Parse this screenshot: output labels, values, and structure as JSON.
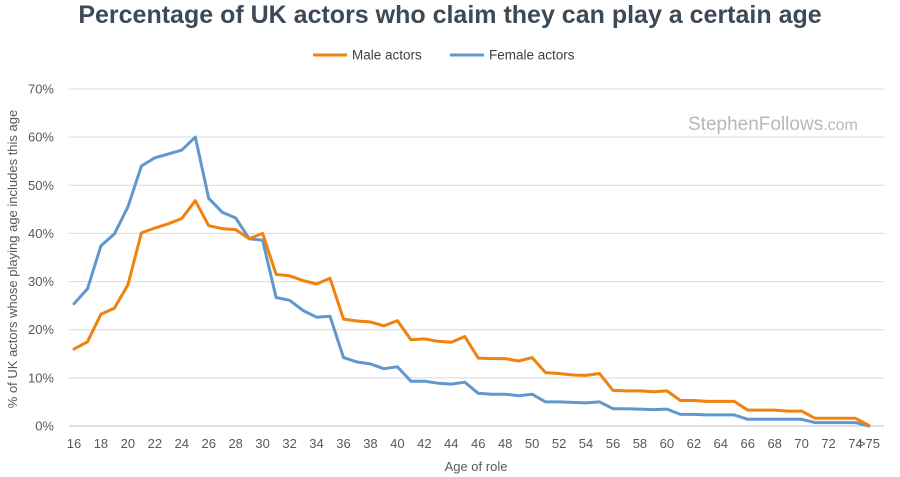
{
  "colors": {
    "male": "#f0820e",
    "female": "#6098ce",
    "grid": "#d9d9d9",
    "title": "#3d4a56"
  },
  "watermark": {
    "main": "StephenFollows",
    "suffix": ".com"
  },
  "chart_data": {
    "type": "line",
    "title": "Percentage of UK actors who claim they can play a certain age",
    "xlabel": "Age of role",
    "ylabel": "% of UK actors whose playing age includes this age",
    "ylim": [
      0,
      70
    ],
    "yticks": [
      "0%",
      "10%",
      "20%",
      "30%",
      "40%",
      "50%",
      "60%",
      "70%"
    ],
    "grid": true,
    "legend_position": "top",
    "x": [
      "16",
      "17",
      "18",
      "19",
      "20",
      "21",
      "22",
      "23",
      "24",
      "25",
      "26",
      "27",
      "28",
      "29",
      "30",
      "31",
      "32",
      "33",
      "34",
      "35",
      "36",
      "37",
      "38",
      "39",
      "40",
      "41",
      "42",
      "43",
      "44",
      "45",
      "46",
      "47",
      "48",
      "49",
      "50",
      "51",
      "52",
      "53",
      "54",
      "55",
      "56",
      "57",
      "58",
      "59",
      "60",
      "61",
      "62",
      "63",
      "64",
      "65",
      "66",
      "67",
      "68",
      "69",
      "70",
      "71",
      "72",
      "73",
      "74",
      ">75"
    ],
    "x_tick_labels": [
      "16",
      "18",
      "20",
      "22",
      "24",
      "26",
      "28",
      "30",
      "32",
      "34",
      "36",
      "38",
      "40",
      "42",
      "44",
      "46",
      "48",
      "50",
      "52",
      "54",
      "56",
      "58",
      "60",
      "62",
      "64",
      "66",
      "68",
      "70",
      "72",
      "74",
      ">75"
    ],
    "series": [
      {
        "name": "Male actors",
        "color": "#f0820e",
        "values": [
          16.0,
          17.5,
          23.2,
          24.5,
          29.3,
          40.1,
          41.1,
          42.0,
          43.1,
          46.8,
          41.6,
          41.0,
          40.8,
          38.9,
          40.0,
          31.5,
          31.2,
          30.2,
          29.5,
          30.7,
          22.2,
          21.8,
          21.6,
          20.8,
          21.9,
          17.9,
          18.1,
          17.6,
          17.4,
          18.6,
          14.1,
          14.0,
          14.0,
          13.5,
          14.2,
          11.1,
          10.9,
          10.6,
          10.5,
          10.9,
          7.4,
          7.3,
          7.3,
          7.1,
          7.3,
          5.3,
          5.3,
          5.1,
          5.1,
          5.1,
          3.3,
          3.3,
          3.3,
          3.1,
          3.1,
          1.6,
          1.6,
          1.6,
          1.6,
          0.1
        ]
      },
      {
        "name": "Female actors",
        "color": "#6098ce",
        "values": [
          25.4,
          28.5,
          37.4,
          39.9,
          45.5,
          54.0,
          55.7,
          56.5,
          57.3,
          60.0,
          47.3,
          44.4,
          43.2,
          38.9,
          38.6,
          26.7,
          26.1,
          24.0,
          22.6,
          22.8,
          14.2,
          13.3,
          12.9,
          11.9,
          12.3,
          9.3,
          9.3,
          8.9,
          8.7,
          9.1,
          6.8,
          6.6,
          6.6,
          6.3,
          6.6,
          5.0,
          5.0,
          4.9,
          4.8,
          5.0,
          3.6,
          3.6,
          3.5,
          3.4,
          3.5,
          2.4,
          2.4,
          2.3,
          2.3,
          2.3,
          1.4,
          1.4,
          1.4,
          1.4,
          1.4,
          0.7,
          0.7,
          0.7,
          0.7,
          0.0
        ]
      }
    ]
  }
}
